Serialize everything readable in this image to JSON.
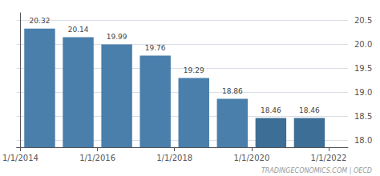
{
  "chart_data": {
    "type": "bar",
    "x": [
      0.5,
      1.5,
      2.5,
      3.5,
      4.5,
      5.5,
      6.5,
      7.5
    ],
    "values": [
      20.32,
      20.14,
      19.99,
      19.76,
      19.29,
      18.86,
      18.46,
      18.46
    ],
    "colors": [
      "#4a7fac",
      "#4a7fac",
      "#4a7fac",
      "#4a7fac",
      "#4a7fac",
      "#4a7fac",
      "#3d6e95",
      "#3d6e95"
    ],
    "xlim": [
      -0.1,
      8.5
    ],
    "xticks": [
      {
        "value": 0,
        "label": "1/1/2014"
      },
      {
        "value": 2,
        "label": "1/1/2016"
      },
      {
        "value": 4,
        "label": "1/1/2018"
      },
      {
        "value": 6,
        "label": "1/1/2020"
      },
      {
        "value": 8,
        "label": "1/1/2022"
      }
    ],
    "ylim": [
      17.85,
      20.65
    ],
    "yticks": [
      {
        "value": 18,
        "label": "18.0"
      },
      18.5,
      {
        "value": 19,
        "label": "19.0"
      },
      19.5,
      {
        "value": 20,
        "label": "20.0"
      },
      20.5
    ],
    "grid": true,
    "data_labels": true,
    "annotations": [
      "TRADINGECONOMICS.COM | OECD"
    ]
  }
}
